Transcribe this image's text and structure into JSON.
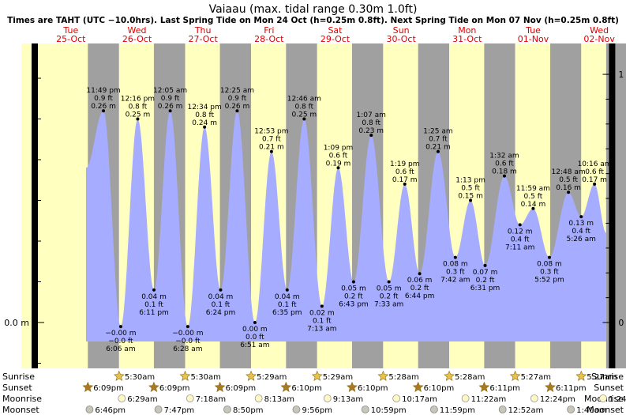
{
  "header": {
    "title": "Vaiaau (max. tidal range 0.30m 1.0ft)",
    "subtitle": "Times are TAHT (UTC −10.0hrs). Last Spring Tide on Mon 24 Oct (h=0.25m 0.8ft). Next Spring Tide on Mon 07 Nov (h=0.25m 0.8ft)"
  },
  "colors": {
    "day": "#ffffc0",
    "night": "#a0a0a0",
    "tide": "#a6acff",
    "red": "#dd0000"
  },
  "chart_data": {
    "type": "area",
    "x_unit": "hours from 00:00 Tue 25-Oct (TAHT)",
    "days": [
      {
        "dow": "Tue",
        "date": "25-Oct"
      },
      {
        "dow": "Wed",
        "date": "26-Oct"
      },
      {
        "dow": "Thu",
        "date": "27-Oct"
      },
      {
        "dow": "Fri",
        "date": "28-Oct"
      },
      {
        "dow": "Sat",
        "date": "29-Oct"
      },
      {
        "dow": "Sun",
        "date": "30-Oct"
      },
      {
        "dow": "Mon",
        "date": "31-Oct"
      },
      {
        "dow": "Tue",
        "date": "01-Nov"
      },
      {
        "dow": "Wed",
        "date": "02-Nov"
      }
    ],
    "ylim_m": [
      -0.065,
      0.32
    ],
    "y_axis_left": [
      {
        "value": 0,
        "label": "0.0 m"
      }
    ],
    "y_axis_right": [
      {
        "value": 0,
        "label": "0 ft"
      },
      {
        "value": 0.3048,
        "label": "1 ft"
      }
    ],
    "extremes": [
      {
        "t": 23.82,
        "h": 0.26,
        "type": "high",
        "time": "11:49 pm",
        "m": "0.26 m",
        "ft": "0.9 ft"
      },
      {
        "t": 30.1,
        "h": -0.005,
        "type": "low",
        "time": "6:06 am",
        "m": "−0.00 m",
        "ft": "−0.0 ft"
      },
      {
        "t": 36.27,
        "h": 0.25,
        "type": "high",
        "time": "12:16 pm",
        "m": "0.25 m",
        "ft": "0.8 ft"
      },
      {
        "t": 42.18,
        "h": 0.04,
        "type": "low",
        "time": "6:11 pm",
        "m": "0.04 m",
        "ft": "0.1 ft"
      },
      {
        "t": 48.08,
        "h": 0.26,
        "type": "high",
        "time": "12:05 am",
        "m": "0.26 m",
        "ft": "0.9 ft"
      },
      {
        "t": 54.47,
        "h": -0.005,
        "type": "low",
        "time": "6:28 am",
        "m": "−0.00 m",
        "ft": "−0.0 ft"
      },
      {
        "t": 60.57,
        "h": 0.24,
        "type": "high",
        "time": "12:34 pm",
        "m": "0.24 m",
        "ft": "0.8 ft"
      },
      {
        "t": 66.4,
        "h": 0.04,
        "type": "low",
        "time": "6:24 pm",
        "m": "0.04 m",
        "ft": "0.1 ft"
      },
      {
        "t": 72.42,
        "h": 0.26,
        "type": "high",
        "time": "12:25 am",
        "m": "0.26 m",
        "ft": "0.9 ft"
      },
      {
        "t": 78.85,
        "h": 0.0,
        "type": "low",
        "time": "6:51 am",
        "m": "0.00 m",
        "ft": "0.0 ft"
      },
      {
        "t": 84.88,
        "h": 0.21,
        "type": "high",
        "time": "12:53 pm",
        "m": "0.21 m",
        "ft": "0.7 ft"
      },
      {
        "t": 90.58,
        "h": 0.04,
        "type": "low",
        "time": "6:35 pm",
        "m": "0.04 m",
        "ft": "0.1 ft"
      },
      {
        "t": 96.77,
        "h": 0.25,
        "type": "high",
        "time": "12:46 am",
        "m": "0.25 m",
        "ft": "0.8 ft"
      },
      {
        "t": 103.22,
        "h": 0.02,
        "type": "low",
        "time": "7:13 am",
        "m": "0.02 m",
        "ft": "0.1 ft"
      },
      {
        "t": 109.15,
        "h": 0.19,
        "type": "high",
        "time": "1:09 pm",
        "m": "0.19 m",
        "ft": "0.6 ft"
      },
      {
        "t": 114.72,
        "h": 0.05,
        "type": "low",
        "time": "6:43 pm",
        "m": "0.05 m",
        "ft": "0.2 ft"
      },
      {
        "t": 121.12,
        "h": 0.23,
        "type": "high",
        "time": "1:07 am",
        "m": "0.23 m",
        "ft": "0.8 ft"
      },
      {
        "t": 127.55,
        "h": 0.05,
        "type": "low",
        "time": "7:33 am",
        "m": "0.05 m",
        "ft": "0.2 ft"
      },
      {
        "t": 133.32,
        "h": 0.17,
        "type": "high",
        "time": "1:19 pm",
        "m": "0.17 m",
        "ft": "0.6 ft"
      },
      {
        "t": 138.73,
        "h": 0.06,
        "type": "low",
        "time": "6:44 pm",
        "m": "0.06 m",
        "ft": "0.2 ft"
      },
      {
        "t": 145.42,
        "h": 0.21,
        "type": "high",
        "time": "1:25 am",
        "m": "0.21 m",
        "ft": "0.7 ft"
      },
      {
        "t": 151.7,
        "h": 0.08,
        "type": "low",
        "time": "7:42 am",
        "m": "0.08 m",
        "ft": "0.3 ft"
      },
      {
        "t": 157.22,
        "h": 0.15,
        "type": "high",
        "time": "1:13 pm",
        "m": "0.15 m",
        "ft": "0.5 ft"
      },
      {
        "t": 162.52,
        "h": 0.07,
        "type": "low",
        "time": "6:31 pm",
        "m": "0.07 m",
        "ft": "0.2 ft"
      },
      {
        "t": 169.53,
        "h": 0.18,
        "type": "high",
        "time": "1:32 am",
        "m": "0.18 m",
        "ft": "0.6 ft"
      },
      {
        "t": 175.18,
        "h": 0.12,
        "type": "low",
        "time": "7:11 am",
        "m": "0.12 m",
        "ft": "0.4 ft"
      },
      {
        "t": 179.98,
        "h": 0.14,
        "type": "high",
        "time": "11:59 am",
        "m": "0.14 m",
        "ft": "0.5 ft"
      },
      {
        "t": 185.87,
        "h": 0.08,
        "type": "low",
        "time": "5:52 pm",
        "m": "0.08 m",
        "ft": "0.3 ft"
      },
      {
        "t": 192.8,
        "h": 0.16,
        "type": "high",
        "time": "12:48 am",
        "m": "0.16 m",
        "ft": "0.5 ft"
      },
      {
        "t": 197.43,
        "h": 0.13,
        "type": "low",
        "time": "5:26 am",
        "m": "0.13 m",
        "ft": "0.4 ft"
      },
      {
        "t": 202.27,
        "h": 0.17,
        "type": "high",
        "time": "10:16 am",
        "m": "0.17 m",
        "ft": "0.6 ft"
      }
    ],
    "curve_start": {
      "t": 17.5,
      "h": 0.19
    },
    "curve_end": {
      "t": 206.5,
      "h": 0.11
    }
  },
  "sun_moon": {
    "labels": {
      "sunrise": "Sunrise",
      "sunset": "Sunset",
      "moonrise": "Moonrise",
      "moonset": "Moonset"
    },
    "sunrise": [
      {
        "t": 29.5,
        "time": "5:30am"
      },
      {
        "t": 53.5,
        "time": "5:30am"
      },
      {
        "t": 77.48,
        "time": "5:29am"
      },
      {
        "t": 101.48,
        "time": "5:29am"
      },
      {
        "t": 125.47,
        "time": "5:28am"
      },
      {
        "t": 149.47,
        "time": "5:28am"
      },
      {
        "t": 173.45,
        "time": "5:27am"
      },
      {
        "t": 197.45,
        "time": "5:27am"
      }
    ],
    "sunset": [
      {
        "t": 18.15,
        "time": "6:09pm"
      },
      {
        "t": 42.15,
        "time": "6:09pm"
      },
      {
        "t": 66.15,
        "time": "6:09pm"
      },
      {
        "t": 90.17,
        "time": "6:10pm"
      },
      {
        "t": 114.17,
        "time": "6:10pm"
      },
      {
        "t": 138.17,
        "time": "6:10pm"
      },
      {
        "t": 162.18,
        "time": "6:11pm"
      },
      {
        "t": 186.18,
        "time": "6:11pm"
      }
    ],
    "moonrise": [
      {
        "t": 30.48,
        "time": "6:29am"
      },
      {
        "t": 55.3,
        "time": "7:18am"
      },
      {
        "t": 80.22,
        "time": "8:13am"
      },
      {
        "t": 105.22,
        "time": "9:13am"
      },
      {
        "t": 130.28,
        "time": "10:17am"
      },
      {
        "t": 155.37,
        "time": "11:22am"
      },
      {
        "t": 180.4,
        "time": "12:24pm"
      },
      {
        "t": 205.4,
        "time": "1:24pm"
      }
    ],
    "moonset": [
      {
        "t": 18.77,
        "time": "6:46pm"
      },
      {
        "t": 43.78,
        "time": "7:47pm"
      },
      {
        "t": 68.83,
        "time": "8:50pm"
      },
      {
        "t": 93.93,
        "time": "9:56pm"
      },
      {
        "t": 118.98,
        "time": "10:59pm"
      },
      {
        "t": 143.98,
        "time": "11:59pm"
      },
      {
        "t": 168.87,
        "time": "12:52am"
      },
      {
        "t": 193.67,
        "time": "1:40am"
      }
    ]
  }
}
